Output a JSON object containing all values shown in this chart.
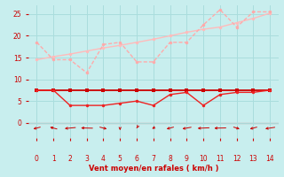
{
  "bg_color": "#c8eeee",
  "grid_color": "#aadddd",
  "x": [
    0,
    1,
    2,
    3,
    4,
    5,
    6,
    7,
    8,
    9,
    10,
    11,
    12,
    13,
    14
  ],
  "line_smooth_y": [
    14.5,
    15.2,
    15.8,
    16.5,
    17.2,
    17.8,
    18.5,
    19.2,
    20.0,
    20.8,
    21.5,
    22.0,
    23.0,
    24.0,
    25.2
  ],
  "line_smooth_color": "#ffbbbb",
  "line_zigzag_y": [
    18.5,
    14.5,
    14.5,
    11.5,
    18.0,
    18.5,
    14.0,
    14.0,
    18.5,
    18.5,
    22.5,
    26.0,
    22.0,
    25.5,
    25.5
  ],
  "line_zigzag_color": "#ffaaaa",
  "line_flat_y": [
    7.5,
    7.5,
    7.5,
    7.5,
    7.5,
    7.5,
    7.5,
    7.5,
    7.5,
    7.5,
    7.5,
    7.5,
    7.5,
    7.5,
    7.5
  ],
  "line_flat_color": "#cc0000",
  "line_lower_y": [
    7.5,
    7.5,
    4.0,
    4.0,
    4.0,
    4.5,
    5.0,
    4.0,
    6.5,
    7.0,
    4.0,
    6.5,
    7.0,
    7.0,
    7.5
  ],
  "line_lower_color": "#ee2222",
  "xlabel": "Vent moyen/en rafales ( km/h )",
  "ylim": [
    -3.5,
    27
  ],
  "xlim": [
    -0.5,
    14.5
  ],
  "yticks": [
    0,
    5,
    10,
    15,
    20,
    25
  ],
  "xticks": [
    0,
    1,
    2,
    3,
    4,
    5,
    6,
    7,
    8,
    9,
    10,
    11,
    12,
    13,
    14
  ],
  "tick_color": "#cc0000",
  "label_color": "#cc0000",
  "marker_size": 2.5,
  "arrow_angles": [
    225,
    135,
    200,
    175,
    315,
    270,
    260,
    245,
    225,
    215,
    190,
    185,
    310,
    225,
    210
  ]
}
